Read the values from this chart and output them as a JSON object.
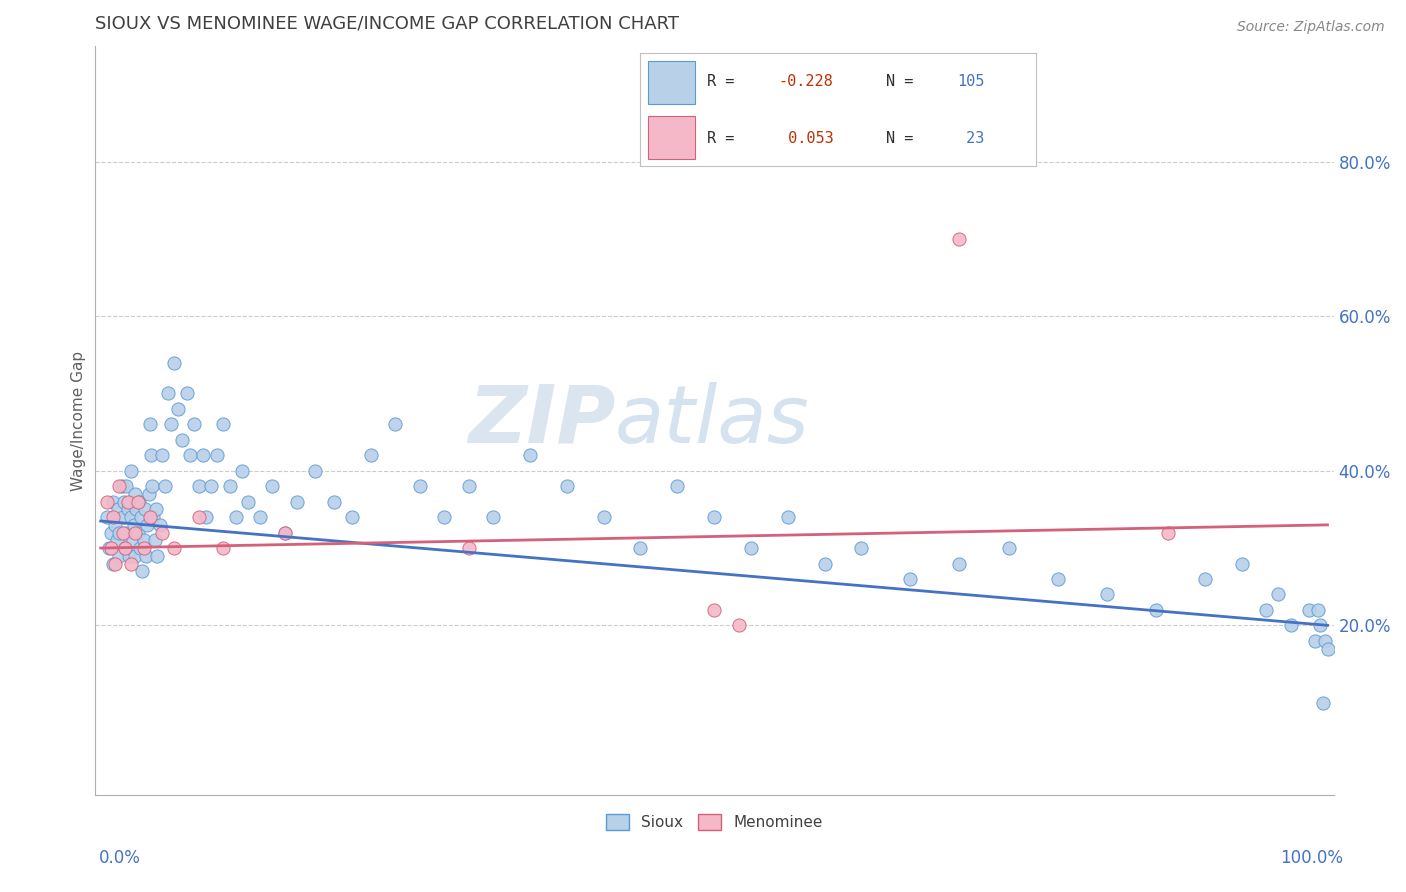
{
  "title": "SIOUX VS MENOMINEE WAGE/INCOME GAP CORRELATION CHART",
  "source": "Source: ZipAtlas.com",
  "ylabel": "Wage/Income Gap",
  "legend_r_sioux": "-0.228",
  "legend_n_sioux": "105",
  "legend_r_menominee": "0.053",
  "legend_n_menominee": "23",
  "sioux_fill": "#b8d0e8",
  "sioux_edge": "#5b9bd5",
  "menominee_fill": "#f4b8c8",
  "menominee_line_color": "#d4607a",
  "menominee_edge": "#d4607a",
  "reg_blue": "#4472c4",
  "reg_pink": "#d4607a",
  "watermark_color": "#dce8f4",
  "bg_color": "#ffffff",
  "grid_color": "#cccccc",
  "title_color": "#404040",
  "axis_label_color": "#4472c4",
  "ytick_vals": [
    0.2,
    0.4,
    0.6,
    0.8
  ],
  "ytick_labels": [
    "20.0%",
    "40.0%",
    "60.0%",
    "80.0%"
  ],
  "xlim": [
    -0.005,
    1.005
  ],
  "ylim": [
    -0.02,
    0.95
  ],
  "sioux_x": [
    0.005,
    0.007,
    0.008,
    0.01,
    0.01,
    0.012,
    0.013,
    0.014,
    0.015,
    0.015,
    0.017,
    0.018,
    0.019,
    0.02,
    0.02,
    0.021,
    0.022,
    0.023,
    0.024,
    0.025,
    0.025,
    0.026,
    0.027,
    0.028,
    0.028,
    0.029,
    0.03,
    0.031,
    0.032,
    0.033,
    0.034,
    0.035,
    0.036,
    0.037,
    0.038,
    0.039,
    0.04,
    0.041,
    0.042,
    0.043,
    0.044,
    0.045,
    0.046,
    0.048,
    0.05,
    0.052,
    0.055,
    0.057,
    0.06,
    0.063,
    0.066,
    0.07,
    0.073,
    0.076,
    0.08,
    0.083,
    0.086,
    0.09,
    0.095,
    0.1,
    0.105,
    0.11,
    0.115,
    0.12,
    0.13,
    0.14,
    0.15,
    0.16,
    0.175,
    0.19,
    0.205,
    0.22,
    0.24,
    0.26,
    0.28,
    0.3,
    0.32,
    0.35,
    0.38,
    0.41,
    0.44,
    0.47,
    0.5,
    0.53,
    0.56,
    0.59,
    0.62,
    0.66,
    0.7,
    0.74,
    0.78,
    0.82,
    0.86,
    0.9,
    0.93,
    0.95,
    0.96,
    0.97,
    0.985,
    0.99,
    0.992,
    0.994,
    0.996,
    0.998,
    1.0
  ],
  "sioux_y": [
    0.34,
    0.3,
    0.32,
    0.36,
    0.28,
    0.33,
    0.31,
    0.35,
    0.29,
    0.32,
    0.38,
    0.34,
    0.36,
    0.3,
    0.32,
    0.38,
    0.35,
    0.29,
    0.36,
    0.4,
    0.34,
    0.31,
    0.33,
    0.37,
    0.29,
    0.35,
    0.32,
    0.36,
    0.3,
    0.34,
    0.27,
    0.31,
    0.35,
    0.29,
    0.33,
    0.37,
    0.46,
    0.42,
    0.38,
    0.34,
    0.31,
    0.35,
    0.29,
    0.33,
    0.42,
    0.38,
    0.5,
    0.46,
    0.54,
    0.48,
    0.44,
    0.5,
    0.42,
    0.46,
    0.38,
    0.42,
    0.34,
    0.38,
    0.42,
    0.46,
    0.38,
    0.34,
    0.4,
    0.36,
    0.34,
    0.38,
    0.32,
    0.36,
    0.4,
    0.36,
    0.34,
    0.42,
    0.46,
    0.38,
    0.34,
    0.38,
    0.34,
    0.42,
    0.38,
    0.34,
    0.3,
    0.38,
    0.34,
    0.3,
    0.34,
    0.28,
    0.3,
    0.26,
    0.28,
    0.3,
    0.26,
    0.24,
    0.22,
    0.26,
    0.28,
    0.22,
    0.24,
    0.2,
    0.22,
    0.18,
    0.22,
    0.2,
    0.1,
    0.18,
    0.17
  ],
  "menominee_x": [
    0.005,
    0.008,
    0.01,
    0.012,
    0.015,
    0.018,
    0.02,
    0.022,
    0.025,
    0.028,
    0.03,
    0.035,
    0.04,
    0.05,
    0.06,
    0.08,
    0.1,
    0.15,
    0.3,
    0.5,
    0.52,
    0.7,
    0.87
  ],
  "menominee_y": [
    0.36,
    0.3,
    0.34,
    0.28,
    0.38,
    0.32,
    0.3,
    0.36,
    0.28,
    0.32,
    0.36,
    0.3,
    0.34,
    0.32,
    0.3,
    0.34,
    0.3,
    0.32,
    0.3,
    0.22,
    0.2,
    0.7,
    0.32
  ]
}
